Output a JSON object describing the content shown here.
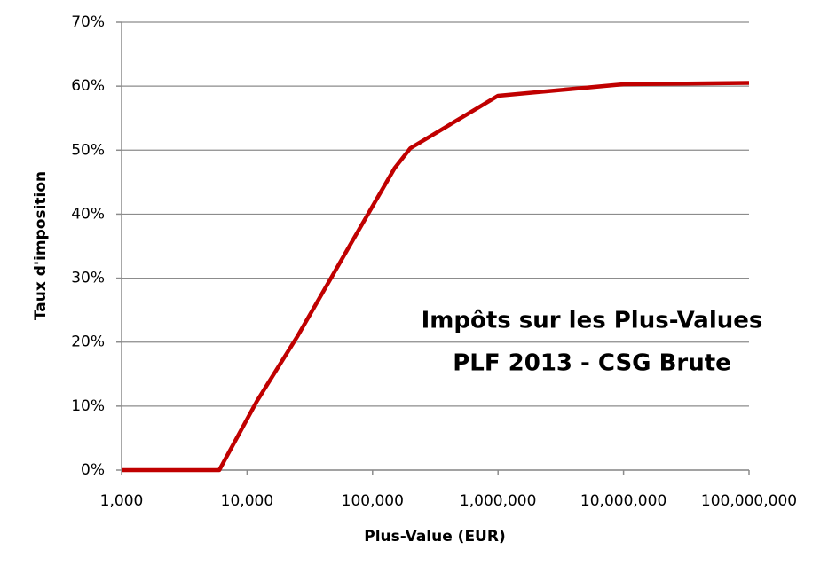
{
  "chart_data": {
    "type": "line",
    "annotations": [
      "Impôts sur les Plus-Values",
      "PLF 2013 - CSG Brute"
    ],
    "x_label": "Plus-Value (EUR)",
    "y_label": "Taux d'imposition",
    "x": [
      1000,
      6000,
      12000,
      25000,
      70000,
      150000,
      200000,
      1000000,
      10000000,
      100000000
    ],
    "series": [
      {
        "name": "Taux d'imposition",
        "color": "#c00000",
        "values": [
          0,
          0,
          10.8,
          20.8,
          36,
          47.2,
          50.3,
          58.5,
          60.3,
          60.5
        ]
      }
    ],
    "x_log": true,
    "grid": true,
    "xlim": [
      1000,
      100000000
    ],
    "xticks": [
      {
        "value": 1000,
        "label": "1,000"
      },
      {
        "value": 10000,
        "label": "10,000"
      },
      {
        "value": 100000,
        "label": "100,000"
      },
      {
        "value": 1000000,
        "label": "1,000,000"
      },
      {
        "value": 10000000,
        "label": "10,000,000"
      },
      {
        "value": 100000000,
        "label": "100,000,000"
      }
    ],
    "ylim": [
      0,
      70
    ],
    "yticks": [
      {
        "value": 0,
        "label": "0%"
      },
      {
        "value": 10,
        "label": "10%"
      },
      {
        "value": 20,
        "label": "20%"
      },
      {
        "value": 30,
        "label": "30%"
      },
      {
        "value": 40,
        "label": "40%"
      },
      {
        "value": 50,
        "label": "50%"
      },
      {
        "value": 60,
        "label": "60%"
      },
      {
        "value": 70,
        "label": "70%"
      }
    ]
  }
}
